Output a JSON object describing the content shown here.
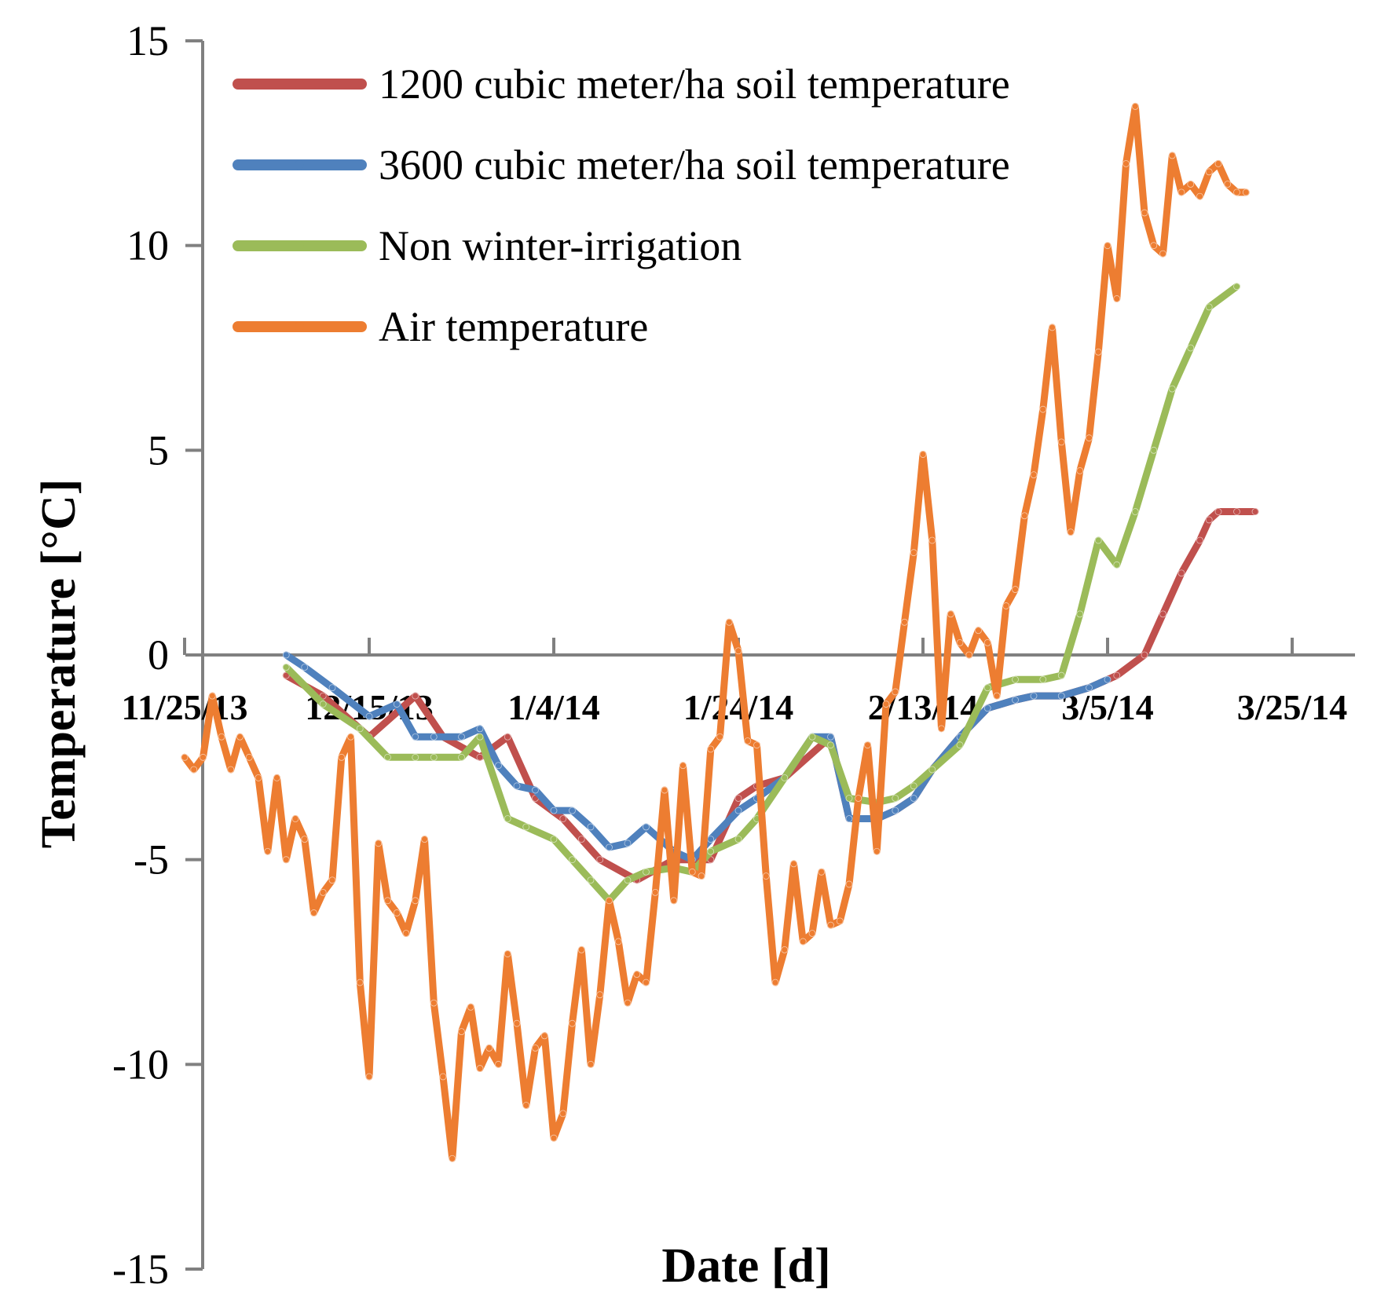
{
  "chart_data": {
    "type": "line",
    "title": "",
    "xlabel": "Date [d]",
    "ylabel": "Temperature [°C]",
    "ylim": [
      -15,
      15
    ],
    "yticks": [
      15,
      10,
      5,
      0,
      -5,
      -10,
      -15
    ],
    "ytick_labels": [
      "15",
      "10",
      "5",
      "0",
      "-5",
      "-10",
      "-15"
    ],
    "x_axis": "day offset from 11/25/13",
    "xlim": [
      0,
      125
    ],
    "xticks": [
      0,
      20,
      40,
      60,
      80,
      100,
      120
    ],
    "xtick_labels": [
      "11/25/13",
      "12/15/13",
      "1/4/14",
      "1/24/14",
      "2/13/14",
      "3/5/14",
      "3/25/14"
    ],
    "legend_position": "top-left",
    "series": [
      {
        "name": "1200 cubic meter/ha soil temperature",
        "color": "#c0504d",
        "x": [
          11,
          15,
          20,
          25,
          28,
          32,
          35,
          38,
          41,
          43,
          45,
          49,
          53,
          57,
          60,
          62,
          65,
          70,
          72,
          75,
          77,
          79,
          81,
          84,
          87,
          90,
          92,
          95,
          98,
          101,
          104,
          106,
          108,
          110,
          111,
          112,
          114,
          116
        ],
        "values": [
          -0.5,
          -1.0,
          -2.0,
          -1.0,
          -2.0,
          -2.5,
          -2.0,
          -3.5,
          -4.0,
          -4.5,
          -5.0,
          -5.5,
          -5.0,
          -5.0,
          -3.5,
          -3.2,
          -3.0,
          -2.0,
          -4.0,
          -4.0,
          -3.8,
          -3.5,
          -2.8,
          -2.0,
          -1.3,
          -1.1,
          -1.0,
          -1.0,
          -0.8,
          -0.5,
          0.0,
          1.0,
          2.0,
          2.8,
          3.3,
          3.5,
          3.5,
          3.5
        ]
      },
      {
        "name": "3600 cubic meter/ha soil temperature",
        "color": "#4f81bd",
        "x": [
          11,
          13,
          16,
          20,
          23,
          25,
          27,
          30,
          32,
          34,
          36,
          38,
          40,
          42,
          44,
          46,
          48,
          50,
          53,
          55,
          57,
          60,
          62,
          65,
          68,
          70,
          72,
          75,
          77,
          79,
          81,
          84,
          87,
          90,
          92,
          95,
          98,
          100
        ],
        "values": [
          0.0,
          -0.3,
          -0.8,
          -1.5,
          -1.2,
          -2.0,
          -2.0,
          -2.0,
          -1.8,
          -2.7,
          -3.2,
          -3.3,
          -3.8,
          -3.8,
          -4.2,
          -4.7,
          -4.6,
          -4.2,
          -4.8,
          -5.0,
          -4.5,
          -3.8,
          -3.5,
          -3.0,
          -2.0,
          -2.0,
          -4.0,
          -4.0,
          -3.8,
          -3.5,
          -2.8,
          -2.0,
          -1.3,
          -1.1,
          -1.0,
          -1.0,
          -0.8,
          -0.6
        ]
      },
      {
        "name": "Non winter-irrigation",
        "color": "#9bbb59",
        "x": [
          11,
          15,
          19,
          22,
          25,
          27,
          30,
          32,
          35,
          37,
          40,
          42,
          44,
          46,
          48,
          50,
          53,
          55,
          57,
          60,
          62,
          65,
          68,
          70,
          72,
          75,
          77,
          79,
          81,
          84,
          87,
          90,
          93,
          95,
          97,
          99,
          101,
          103,
          105,
          107,
          109,
          111,
          114
        ],
        "values": [
          -0.3,
          -1.2,
          -1.8,
          -2.5,
          -2.5,
          -2.5,
          -2.5,
          -2.0,
          -4.0,
          -4.2,
          -4.5,
          -5.0,
          -5.5,
          -6.0,
          -5.5,
          -5.3,
          -5.2,
          -5.3,
          -4.8,
          -4.5,
          -4.0,
          -3.0,
          -2.0,
          -2.2,
          -3.5,
          -3.6,
          -3.5,
          -3.2,
          -2.8,
          -2.2,
          -0.8,
          -0.6,
          -0.6,
          -0.5,
          1.0,
          2.8,
          2.2,
          3.5,
          5.0,
          6.5,
          7.5,
          8.5,
          9.0
        ]
      },
      {
        "name": "Air temperature",
        "color": "#ed7d31",
        "x": [
          0,
          1,
          2,
          3,
          4,
          5,
          6,
          7,
          8,
          9,
          10,
          11,
          12,
          13,
          14,
          15,
          16,
          17,
          18,
          19,
          20,
          21,
          22,
          23,
          24,
          25,
          26,
          27,
          28,
          29,
          30,
          31,
          32,
          33,
          34,
          35,
          36,
          37,
          38,
          39,
          40,
          41,
          42,
          43,
          44,
          45,
          46,
          47,
          48,
          49,
          50,
          51,
          52,
          53,
          54,
          55,
          56,
          57,
          58,
          59,
          60,
          61,
          62,
          63,
          64,
          65,
          66,
          67,
          68,
          69,
          70,
          71,
          72,
          73,
          74,
          75,
          76,
          77,
          78,
          79,
          80,
          81,
          82,
          83,
          84,
          85,
          86,
          87,
          88,
          89,
          90,
          91,
          92,
          93,
          94,
          95,
          96,
          97,
          98,
          99,
          100,
          101,
          102,
          103,
          104,
          105,
          106,
          107,
          108,
          109,
          110,
          111,
          112,
          113,
          114,
          115
        ],
        "values": [
          -2.5,
          -2.8,
          -2.5,
          -1.0,
          -2.0,
          -2.8,
          -2.0,
          -2.5,
          -3.0,
          -4.8,
          -3.0,
          -5.0,
          -4.0,
          -4.5,
          -6.3,
          -5.8,
          -5.5,
          -2.5,
          -2.0,
          -8.0,
          -10.3,
          -4.6,
          -6.0,
          -6.3,
          -6.8,
          -6.0,
          -4.5,
          -8.5,
          -10.3,
          -12.3,
          -9.2,
          -8.6,
          -10.1,
          -9.6,
          -10.0,
          -7.3,
          -9.0,
          -11.0,
          -9.6,
          -9.3,
          -11.8,
          -11.2,
          -9.0,
          -7.2,
          -10.0,
          -8.3,
          -6.0,
          -7.0,
          -8.5,
          -7.8,
          -8.0,
          -5.8,
          -3.3,
          -6.0,
          -2.7,
          -5.3,
          -5.4,
          -2.3,
          -2.0,
          0.8,
          0.1,
          -2.1,
          -2.2,
          -5.4,
          -8.0,
          -7.2,
          -5.1,
          -7.0,
          -6.8,
          -5.3,
          -6.6,
          -6.5,
          -5.6,
          -3.5,
          -2.2,
          -4.8,
          -1.2,
          -0.9,
          0.8,
          2.5,
          4.9,
          2.8,
          -1.8,
          1.0,
          0.3,
          0.0,
          0.6,
          0.3,
          -1.0,
          1.2,
          1.6,
          3.4,
          4.4,
          6.0,
          8.0,
          5.2,
          3.0,
          4.5,
          5.3,
          7.4,
          10.0,
          8.7,
          12.0,
          13.4,
          10.8,
          10.0,
          9.8,
          12.2,
          11.3,
          11.5,
          11.2,
          11.8,
          12.0,
          11.5,
          11.3,
          11.3
        ]
      }
    ]
  }
}
